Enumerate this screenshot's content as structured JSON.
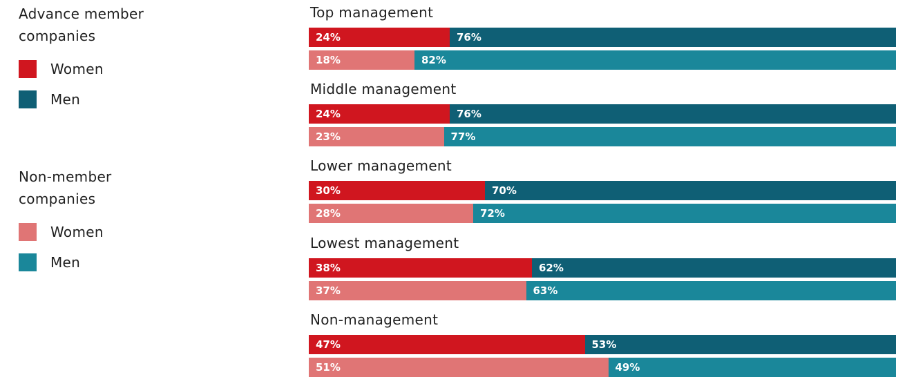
{
  "chart_data": {
    "type": "grouped_stacked_bar_horizontal",
    "categories": [
      "Top management",
      "Middle management",
      "Lower management",
      "Lowest management",
      "Non-management"
    ],
    "xlim": [
      0,
      100
    ],
    "groups": [
      {
        "name": "Advance member companies",
        "series": [
          {
            "name": "Women",
            "color": "#d0161f",
            "values": [
              24,
              24,
              30,
              38,
              47
            ],
            "value_labels": [
              "24%",
              "24%",
              "30%",
              "38%",
              "47%"
            ]
          },
          {
            "name": "Men",
            "color": "#0f5f75",
            "values": [
              76,
              76,
              70,
              62,
              53
            ],
            "value_labels": [
              "76%",
              "76%",
              "70%",
              "62%",
              "53%"
            ]
          }
        ]
      },
      {
        "name": "Non-member companies",
        "series": [
          {
            "name": "Women",
            "color": "#e07575",
            "values": [
              18,
              23,
              28,
              37,
              51
            ],
            "value_labels": [
              "18%",
              "23%",
              "28%",
              "37%",
              "51%"
            ]
          },
          {
            "name": "Men",
            "color": "#1a879a",
            "values": [
              82,
              77,
              72,
              63,
              49
            ],
            "value_labels": [
              "82%",
              "77%",
              "72%",
              "63%",
              "49%"
            ]
          }
        ]
      }
    ]
  }
}
